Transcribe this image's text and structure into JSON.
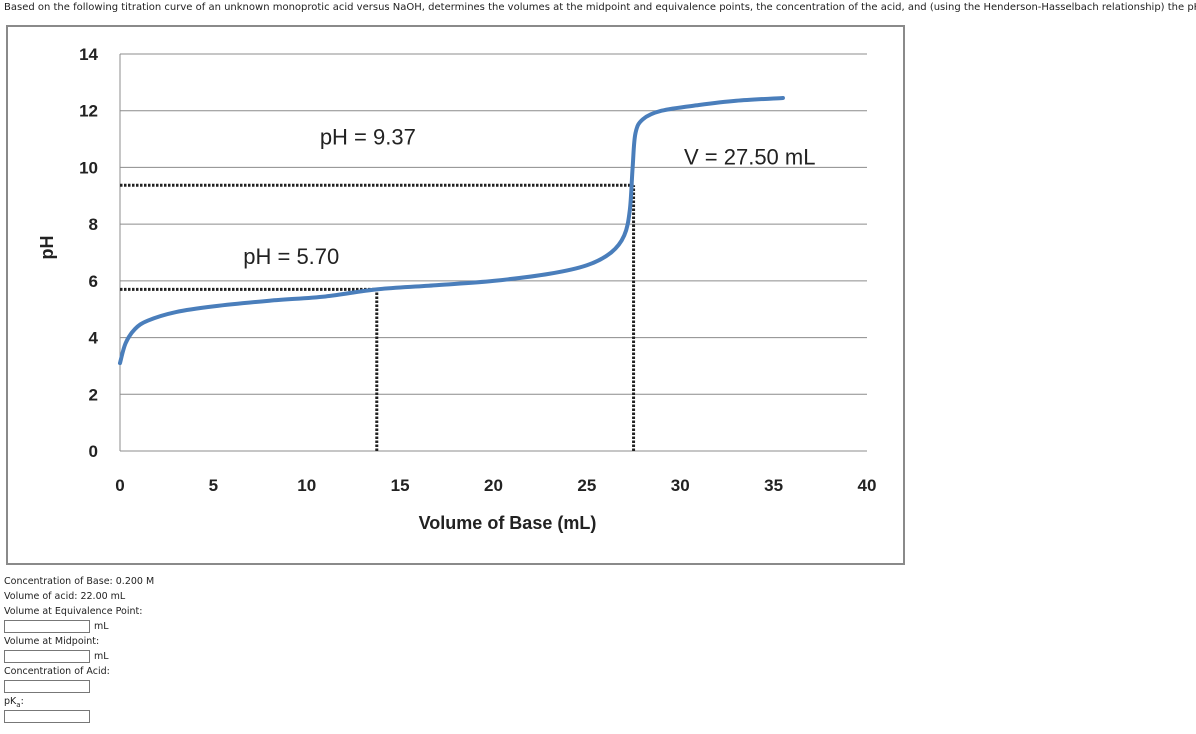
{
  "question": {
    "text": "Based on the following titration curve of an unknown monoprotic acid versus NaOH, determines the volumes at the midpoint and equivalence points, the concentration of the acid, and (using the Henderson-Hasselbach relationship) the pK",
    "sub": "a",
    "suffix": ":"
  },
  "chart_data": {
    "type": "line",
    "xlabel": "Volume of Base (mL)",
    "ylabel": "pH",
    "xlim": [
      0,
      40
    ],
    "ylim": [
      0,
      14
    ],
    "x_ticks": [
      "0",
      "5",
      "10",
      "15",
      "20",
      "25",
      "30",
      "35",
      "40"
    ],
    "y_ticks": [
      "0",
      "2",
      "4",
      "6",
      "8",
      "10",
      "12",
      "14"
    ],
    "grid": "horizontal",
    "series": [
      {
        "color": "#4a7ebb",
        "points": [
          [
            0,
            3.1
          ],
          [
            0.3,
            3.8
          ],
          [
            0.8,
            4.3
          ],
          [
            1.5,
            4.6
          ],
          [
            3,
            4.9
          ],
          [
            5,
            5.1
          ],
          [
            8,
            5.3
          ],
          [
            11,
            5.45
          ],
          [
            13.75,
            5.7
          ],
          [
            17,
            5.85
          ],
          [
            20,
            6.0
          ],
          [
            23,
            6.25
          ],
          [
            25,
            6.55
          ],
          [
            26.3,
            7.0
          ],
          [
            27.0,
            7.6
          ],
          [
            27.3,
            8.5
          ],
          [
            27.45,
            10.0
          ],
          [
            27.6,
            11.2
          ],
          [
            28.0,
            11.7
          ],
          [
            29,
            12.0
          ],
          [
            31,
            12.2
          ],
          [
            33,
            12.35
          ],
          [
            35.5,
            12.45
          ]
        ]
      }
    ],
    "annotations": [
      {
        "text": "pH = 9.37",
        "x": 10.7,
        "y": 10.8
      },
      {
        "text": "pH = 5.70",
        "x": 6.6,
        "y": 6.6
      },
      {
        "text": "V = 27.50 mL",
        "x": 30.2,
        "y": 10.1
      }
    ],
    "reference_lines": [
      {
        "kind": "horizontal",
        "y": 9.37,
        "x_from": 0,
        "x_to": 27.5
      },
      {
        "kind": "vertical",
        "x": 27.5,
        "y_from": 0,
        "y_to": 9.37
      },
      {
        "kind": "horizontal",
        "y": 5.7,
        "x_from": 0,
        "x_to": 13.75
      },
      {
        "kind": "vertical",
        "x": 13.75,
        "y_from": 0,
        "y_to": 5.7
      }
    ]
  },
  "form": {
    "conc_base": "Concentration of Base: 0.200 M",
    "vol_acid": "Volume of acid: 22.00 mL",
    "equiv_label": "Volume at Equivalence Point:",
    "equiv_unit": "mL",
    "mid_label": "Volume at Midpoint:",
    "mid_unit": "mL",
    "conc_acid_label": "Concentration of Acid:",
    "pka_label": "pK",
    "pka_sub": "a",
    "pka_suffix": ":"
  }
}
